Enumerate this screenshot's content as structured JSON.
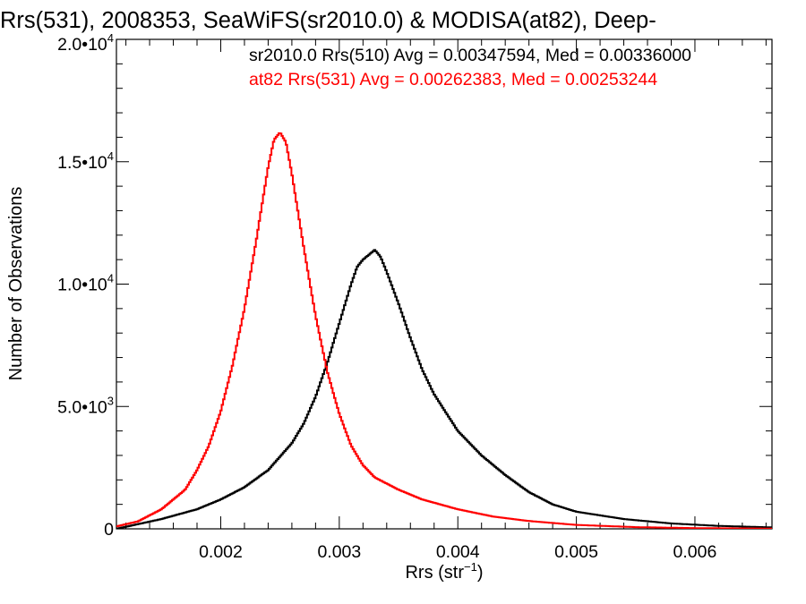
{
  "chart_data": {
    "type": "line",
    "title": "Rrs(531), 2008353, SeaWiFS(sr2010.0) & MODISA(at82), Deep-",
    "xlabel_main": "Rrs (str",
    "xlabel_sup": "−1",
    "xlabel_close": ")",
    "ylabel": "Number of Observations",
    "xlim": [
      0.00112,
      0.00665
    ],
    "ylim": [
      0,
      20000
    ],
    "x_ticks": [
      {
        "value": 0.002,
        "label": "0.002"
      },
      {
        "value": 0.003,
        "label": "0.003"
      },
      {
        "value": 0.004,
        "label": "0.004"
      },
      {
        "value": 0.005,
        "label": "0.005"
      },
      {
        "value": 0.006,
        "label": "0.006"
      }
    ],
    "y_ticks": [
      {
        "value": 0,
        "mant": "0",
        "exp": ""
      },
      {
        "value": 5000,
        "mant": "5.0•10",
        "exp": "3"
      },
      {
        "value": 10000,
        "mant": "1.0•10",
        "exp": "4"
      },
      {
        "value": 15000,
        "mant": "1.5•10",
        "exp": "4"
      },
      {
        "value": 20000,
        "mant": "2.0•10",
        "exp": "4"
      }
    ],
    "grid": false,
    "series": [
      {
        "name": "sr2010.0 Rrs(510) Avg = 0.00347594, Med = 0.00336000",
        "color": "#000000",
        "x": [
          0.00112,
          0.0015,
          0.0018,
          0.002,
          0.0022,
          0.0024,
          0.0026,
          0.0027,
          0.0028,
          0.0029,
          0.003,
          0.0031,
          0.00315,
          0.0032,
          0.00325,
          0.0033,
          0.00335,
          0.0034,
          0.0035,
          0.0036,
          0.0037,
          0.0038,
          0.004,
          0.0042,
          0.0044,
          0.0046,
          0.0048,
          0.005,
          0.0054,
          0.0058,
          0.0062,
          0.00665
        ],
        "y": [
          0,
          400,
          800,
          1200,
          1700,
          2400,
          3500,
          4300,
          5400,
          6800,
          8400,
          10000,
          10700,
          11000,
          11200,
          11400,
          11100,
          10500,
          9200,
          7800,
          6500,
          5500,
          4000,
          3000,
          2200,
          1500,
          1000,
          700,
          400,
          220,
          120,
          60
        ]
      },
      {
        "name": "at82 Rrs(531) Avg = 0.00262383, Med = 0.00253244",
        "color": "#ff0000",
        "x": [
          0.00112,
          0.0013,
          0.0015,
          0.0017,
          0.0018,
          0.0019,
          0.002,
          0.0021,
          0.0022,
          0.0023,
          0.0024,
          0.00245,
          0.0025,
          0.00255,
          0.0026,
          0.0027,
          0.0028,
          0.0029,
          0.003,
          0.0031,
          0.0032,
          0.0033,
          0.0035,
          0.0037,
          0.004,
          0.0043,
          0.0046,
          0.005,
          0.0055,
          0.006,
          0.00665
        ],
        "y": [
          100,
          300,
          800,
          1600,
          2400,
          3400,
          4800,
          6700,
          9000,
          11800,
          14800,
          15900,
          16200,
          15800,
          14500,
          11500,
          8700,
          6400,
          4700,
          3400,
          2600,
          2100,
          1600,
          1200,
          800,
          500,
          320,
          160,
          70,
          30,
          10
        ]
      }
    ]
  }
}
